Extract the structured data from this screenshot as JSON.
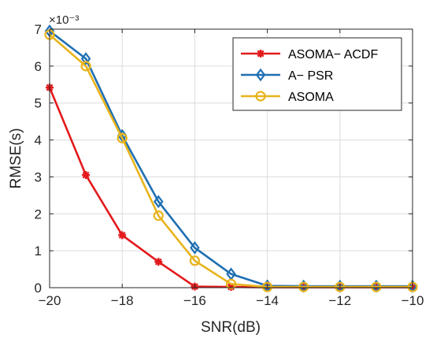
{
  "chart_data": {
    "type": "line",
    "xlabel": "SNR(dB)",
    "ylabel": "RMSE(s)",
    "y_multiplier_label": "×10⁻³",
    "xlim": [
      -20,
      -10
    ],
    "ylim": [
      0,
      7
    ],
    "xticks": [
      -20,
      -18,
      -16,
      -14,
      -12,
      -10
    ],
    "xtick_labels": [
      "−20",
      "−18",
      "−16",
      "−14",
      "−12",
      "−10"
    ],
    "yticks": [
      0,
      1,
      2,
      3,
      4,
      5,
      6,
      7
    ],
    "ytick_labels": [
      "0",
      "1",
      "2",
      "3",
      "4",
      "5",
      "6",
      "7"
    ],
    "grid": true,
    "legend_position": "top-right",
    "x": [
      -20,
      -19,
      -18,
      -17,
      -16,
      -15,
      -14,
      -13,
      -12,
      -11,
      -10
    ],
    "series": [
      {
        "name": "ASOMA− ACDF",
        "color": "#e31a1c",
        "marker": "asterisk",
        "values": [
          5.42,
          3.05,
          1.42,
          0.7,
          0.03,
          0.02,
          0.01,
          0.01,
          0.01,
          0.01,
          0.01
        ]
      },
      {
        "name": "A− PSR",
        "color": "#1f6fb2",
        "marker": "diamond",
        "values": [
          6.95,
          6.2,
          4.12,
          2.33,
          1.08,
          0.37,
          0.05,
          0.04,
          0.04,
          0.04,
          0.04
        ]
      },
      {
        "name": "ASOMA",
        "color": "#e8b41c",
        "marker": "circle",
        "values": [
          6.85,
          6.0,
          4.05,
          1.95,
          0.73,
          0.1,
          0.02,
          0.02,
          0.02,
          0.02,
          0.02
        ]
      }
    ]
  }
}
